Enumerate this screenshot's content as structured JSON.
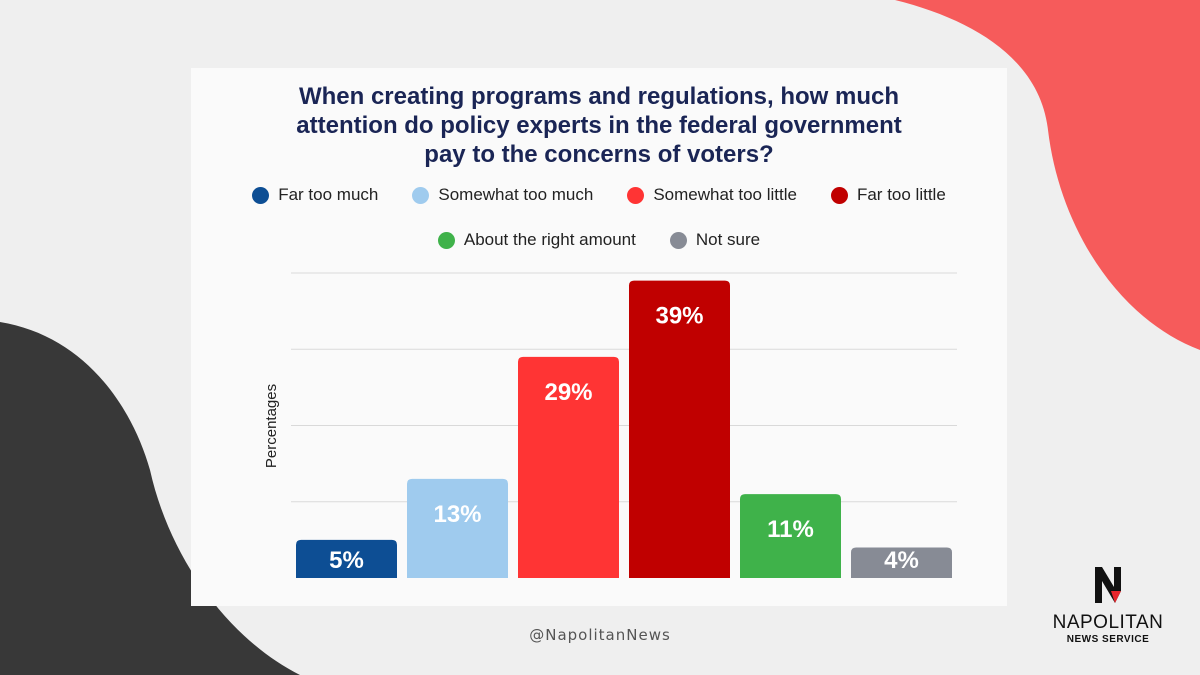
{
  "colors": {
    "background": "#efefef",
    "card": "#fafafa",
    "accent_red_shape": "#f65b5b",
    "dark_shape": "#383838",
    "title": "#1a2555",
    "grid": "#d9d9d9"
  },
  "chart_data": {
    "type": "bar",
    "title_lines": [
      "When creating programs and regulations, how much",
      "attention do policy experts in the federal government",
      "pay to the concerns of voters?"
    ],
    "ylabel": "Percentages",
    "xlabel": "",
    "ylim": [
      0,
      40
    ],
    "grid": true,
    "legend_position": "top",
    "categories": [
      "Far too much",
      "Somewhat too much",
      "Somewhat too little",
      "Far too little",
      "About the right amount",
      "Not sure"
    ],
    "values": [
      5,
      13,
      29,
      39,
      11,
      4
    ],
    "value_labels": [
      "5%",
      "13%",
      "29%",
      "39%",
      "11%",
      "4%"
    ],
    "colors": [
      "#0d4e94",
      "#9fcbee",
      "#ff3434",
      "#c00000",
      "#3fb24a",
      "#878b95"
    ]
  },
  "footer": {
    "handle": "@NapolitanNews"
  },
  "logo": {
    "icon": "napolitan-n-icon",
    "wordmark": "NAPOLITAN",
    "subtitle": "NEWS SERVICE"
  }
}
